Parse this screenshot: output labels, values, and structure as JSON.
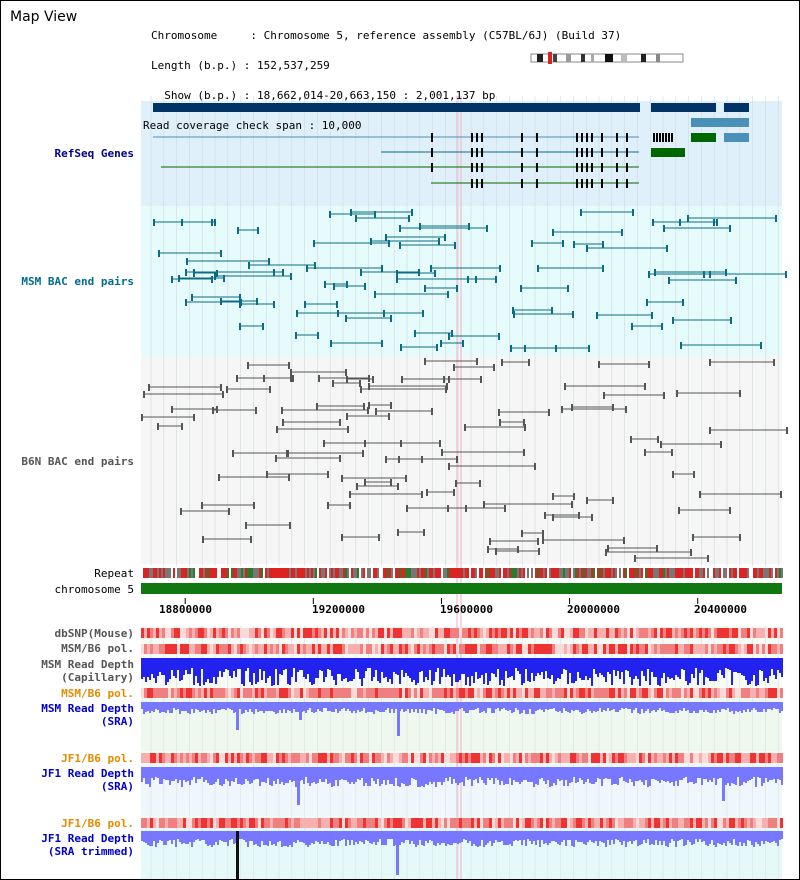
{
  "header": {
    "title": "Map View",
    "info_lines": [
      "Chromosome     : Chromosome 5, reference assembly (C57BL/6J) (Build 37)",
      "Length (b.p.) : 152,537,259",
      "  Show (b.p.) : 18,662,014-20,663,150 : 2,001,137 bp",
      "Read coverage check span : 10,000"
    ]
  },
  "tracks": {
    "refseq": "RefSeq Genes",
    "msm_bac": "MSM BAC end pairs",
    "b6n_bac": "B6N BAC end pairs",
    "repeat": "Repeat",
    "chromosome": "chromosome 5",
    "dbsnp": "dbSNP(Mouse)",
    "msm_b6_pol_1": "MSM/B6 pol.",
    "msm_read_depth_cap_1": "MSM Read Depth",
    "msm_read_depth_cap_2": "(Capillary)",
    "msm_b6_pol_2": "MSM/B6 pol.",
    "msm_read_depth_sra_1": "MSM Read Depth",
    "msm_read_depth_sra_2": "(SRA)",
    "jf1_b6_pol_1": "JF1/B6 pol.",
    "jf1_read_depth_sra_1": "JF1 Read Depth",
    "jf1_read_depth_sra_2": "(SRA)",
    "jf1_b6_pol_2": "JF1/B6 pol.",
    "jf1_read_depth_trim_1": "JF1 Read Depth",
    "jf1_read_depth_trim_2": "(SRA trimmed)"
  },
  "axis": {
    "ticks": [
      "18800000",
      "19200000",
      "19600000",
      "20000000",
      "20400000"
    ],
    "tick_values": [
      18800000,
      19200000,
      19600000,
      20000000,
      20400000
    ],
    "start": 18662014,
    "end": 20663150
  },
  "colors": {
    "refseq_bg": "#dff0fa",
    "msm_bg": "#e6fbfb",
    "b6n_bg": "#f6f6f6",
    "gene_dark": "#003366",
    "gene_mid": "#4a90b8",
    "gene_green": "#006600",
    "msm_line": "#0a6d85",
    "b6n_line": "#555555",
    "chrom_green": "#117711",
    "depth_blue": "#2222ee",
    "depth_light": "#7777ff",
    "pol_red": "#ee2222"
  }
}
